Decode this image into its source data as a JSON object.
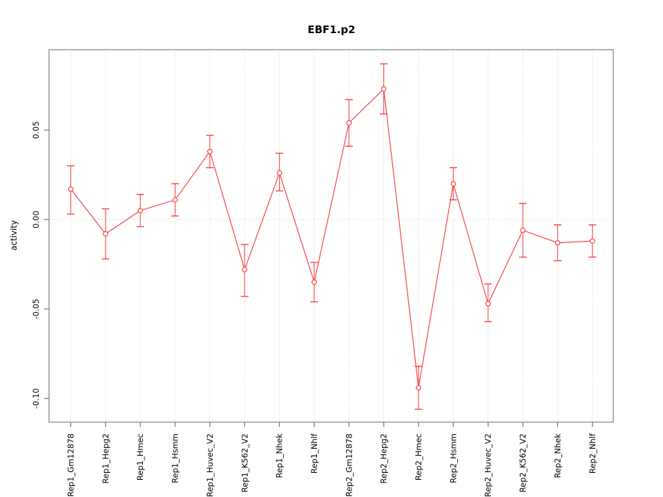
{
  "chart_data": {
    "type": "line",
    "title": "EBF1.p2",
    "xlabel": "",
    "ylabel": "activity",
    "legend": "none",
    "grid": "dotted vertical line at each category; dotted horizontal line at y=0",
    "point_style": "open circles with vertical error bars, single red series",
    "categories": [
      "Rep1_Gm12878",
      "Rep1_Hepg2",
      "Rep1_Hmec",
      "Rep1_Hsmm",
      "Rep1_Huvec_V2",
      "Rep1_K562_V2",
      "Rep1_Nhek",
      "Rep1_Nhlf",
      "Rep2_Gm12878",
      "Rep2_Hepg2",
      "Rep2_Hmec",
      "Rep2_Hsmm",
      "Rep2_Huvec_V2",
      "Rep2_K562_V2",
      "Rep2_Nhek",
      "Rep2_Nhlf"
    ],
    "series": [
      {
        "name": "activity",
        "values": [
          0.017,
          -0.008,
          0.005,
          0.011,
          0.038,
          -0.028,
          0.026,
          -0.035,
          0.054,
          0.073,
          -0.094,
          0.02,
          -0.047,
          -0.006,
          -0.013,
          -0.012
        ],
        "error_low": [
          0.003,
          -0.022,
          -0.004,
          0.002,
          0.029,
          -0.043,
          0.016,
          -0.046,
          0.041,
          0.059,
          -0.106,
          0.011,
          -0.057,
          -0.021,
          -0.023,
          -0.021
        ],
        "error_high": [
          0.03,
          0.006,
          0.014,
          0.02,
          0.047,
          -0.014,
          0.037,
          -0.024,
          0.067,
          0.087,
          -0.082,
          0.029,
          -0.036,
          0.009,
          -0.003,
          -0.003
        ]
      }
    ],
    "yticks": [
      0.05,
      0.0,
      -0.05,
      -0.1
    ],
    "ytick_labels": [
      "0.05",
      "0.00",
      "-0.05",
      "-0.10"
    ],
    "ylim": [
      -0.1132,
      0.0949
    ],
    "colors": {
      "series": "#f84040",
      "grid": "#c9c9c9",
      "frame": "#8f8f8f",
      "tick": "#7a7a7a",
      "text": "#000000",
      "background": "#ffffff"
    }
  }
}
